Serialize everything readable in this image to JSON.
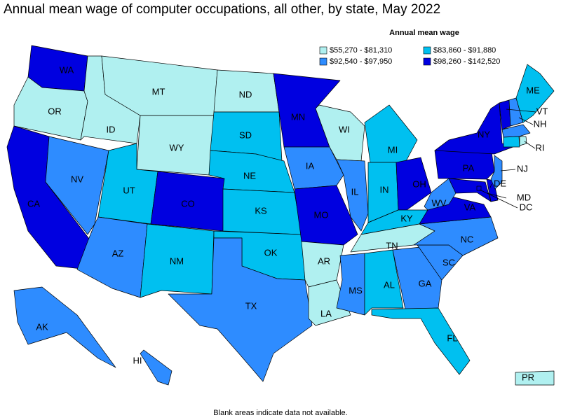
{
  "title": "Annual mean wage of computer occupations, all other, by state, May 2022",
  "legend": {
    "title": "Annual mean wage",
    "items": [
      {
        "label": "$55,270 - $81,310",
        "color": "#b0f0f0"
      },
      {
        "label": "$83,860 - $91,880",
        "color": "#00c0f0"
      },
      {
        "label": "$92,540 - $97,950",
        "color": "#2e8cff"
      },
      {
        "label": "$98,260 - $142,520",
        "color": "#0000e0"
      }
    ]
  },
  "states": [
    {
      "label": "WA",
      "class": 3
    },
    {
      "label": "OR",
      "class": 0
    },
    {
      "label": "CA",
      "class": 3
    },
    {
      "label": "NV",
      "class": 2
    },
    {
      "label": "ID",
      "class": 0
    },
    {
      "label": "MT",
      "class": 0
    },
    {
      "label": "WY",
      "class": 0
    },
    {
      "label": "UT",
      "class": 1
    },
    {
      "label": "CO",
      "class": 3
    },
    {
      "label": "AZ",
      "class": 2
    },
    {
      "label": "NM",
      "class": 1
    },
    {
      "label": "ND",
      "class": 0
    },
    {
      "label": "SD",
      "class": 1
    },
    {
      "label": "NE",
      "class": 1
    },
    {
      "label": "KS",
      "class": 1
    },
    {
      "label": "OK",
      "class": 1
    },
    {
      "label": "TX",
      "class": 2
    },
    {
      "label": "MN",
      "class": 3
    },
    {
      "label": "IA",
      "class": 2
    },
    {
      "label": "MO",
      "class": 3
    },
    {
      "label": "AR",
      "class": 0
    },
    {
      "label": "LA",
      "class": 0
    },
    {
      "label": "WI",
      "class": 0
    },
    {
      "label": "IL",
      "class": 2
    },
    {
      "label": "MI",
      "class": 1
    },
    {
      "label": "IN",
      "class": 1
    },
    {
      "label": "OH",
      "class": 3
    },
    {
      "label": "KY",
      "class": 1
    },
    {
      "label": "TN",
      "class": 0
    },
    {
      "label": "MS",
      "class": 2
    },
    {
      "label": "AL",
      "class": 1
    },
    {
      "label": "GA",
      "class": 2
    },
    {
      "label": "FL",
      "class": 1
    },
    {
      "label": "SC",
      "class": 2
    },
    {
      "label": "NC",
      "class": 2
    },
    {
      "label": "VA",
      "class": 3
    },
    {
      "label": "WV",
      "class": 2
    },
    {
      "label": "MD",
      "class": 3
    },
    {
      "label": "DE",
      "class": 3
    },
    {
      "label": "PA",
      "class": 3
    },
    {
      "label": "NJ",
      "class": 2
    },
    {
      "label": "NY",
      "class": 3
    },
    {
      "label": "VT",
      "class": 3
    },
    {
      "label": "NH",
      "class": 2
    },
    {
      "label": "ME",
      "class": 1
    },
    {
      "label": null,
      "class": 2
    },
    {
      "label": null,
      "class": 1
    },
    {
      "label": "RI",
      "class": 0
    },
    {
      "label": "AK",
      "class": 2
    },
    {
      "label": "HI",
      "class": 2
    },
    {
      "label": "PR",
      "class": 0
    },
    {
      "label": "DC",
      "class": 3
    }
  ],
  "footnote": "Blank areas indicate data not available."
}
